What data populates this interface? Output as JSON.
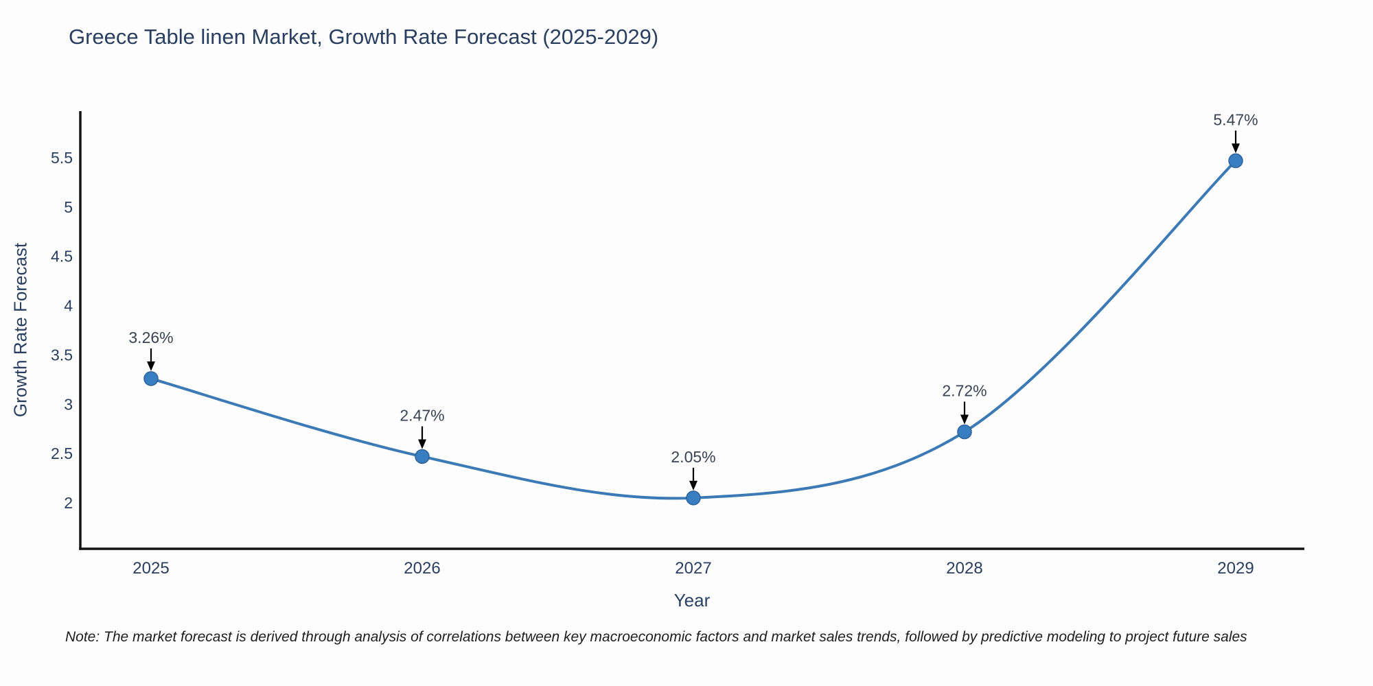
{
  "chart_data": {
    "type": "line",
    "title": "Greece Table linen Market, Growth Rate Forecast (2025-2029)",
    "categories": [
      "2025",
      "2026",
      "2027",
      "2028",
      "2029"
    ],
    "series": [
      {
        "name": "Growth Rate Forecast",
        "values": [
          3.26,
          2.47,
          2.05,
          2.72,
          5.47
        ]
      }
    ],
    "point_labels": [
      "3.26%",
      "2.47%",
      "2.05%",
      "2.72%",
      "5.47%"
    ],
    "xlabel": "Year",
    "ylabel": "Growth Rate Forecast",
    "y_ticks": [
      2,
      2.5,
      3,
      3.5,
      4,
      4.5,
      5,
      5.5
    ],
    "ylim": [
      1.53,
      5.97
    ],
    "line_shape": "spline",
    "grid": false,
    "legend": "none",
    "colors": {
      "line": "#3c7ab6",
      "marker": "#3a7ec2",
      "marker_stroke": "#2d6194",
      "axis": "#131313",
      "text": "#2a3f5f",
      "annotation_text": "#3a4350",
      "arrow": "#000000",
      "background": "#fdfdfe"
    }
  },
  "note": {
    "text": "Note: The market forecast is derived through analysis of correlations between key macroeconomic factors and market sales trends, followed by predictive modeling to project future sales"
  }
}
